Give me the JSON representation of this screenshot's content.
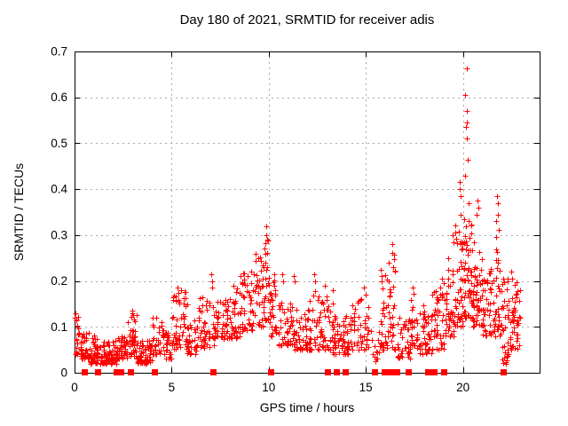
{
  "chart_data": {
    "type": "scatter",
    "title": "Day 180 of 2021, SRMTID for receiver adis",
    "xlabel": "GPS time / hours",
    "ylabel": "SRMTID / TECUs",
    "xlim": [
      0,
      23.95
    ],
    "ylim": [
      0,
      0.7
    ],
    "xticks": [
      "0",
      "5",
      "10",
      "15",
      "20"
    ],
    "yticks": [
      "0",
      "0.1",
      "0.2",
      "0.3",
      "0.4",
      "0.5",
      "0.6",
      "0.7"
    ],
    "grid": true,
    "legend": false,
    "marker": "plus",
    "marker_color": "#ff0000",
    "frame_color": "#000000",
    "grid_color": "#a9a9a9",
    "series_name": "SRMTID",
    "seed": 12,
    "spread_exponent": 1.55,
    "highlight_points": [
      [
        0.05,
        0.13
      ],
      [
        0.08,
        0.115
      ],
      [
        2.95,
        0.135
      ],
      [
        3.0,
        0.125
      ],
      [
        4.2,
        0.12
      ],
      [
        5.3,
        0.185
      ],
      [
        5.35,
        0.175
      ],
      [
        7.05,
        0.215
      ],
      [
        7.08,
        0.2
      ],
      [
        7.1,
        0.185
      ],
      [
        8.2,
        0.19
      ],
      [
        8.9,
        0.21
      ],
      [
        9.1,
        0.22
      ],
      [
        9.8,
        0.27
      ],
      [
        9.83,
        0.282
      ],
      [
        9.85,
        0.32
      ],
      [
        9.88,
        0.3
      ],
      [
        9.9,
        0.29
      ],
      [
        10.7,
        0.215
      ],
      [
        10.75,
        0.2
      ],
      [
        11.3,
        0.21
      ],
      [
        11.35,
        0.2
      ],
      [
        12.35,
        0.215
      ],
      [
        12.4,
        0.2
      ],
      [
        12.9,
        0.19
      ],
      [
        13.3,
        0.18
      ],
      [
        14.9,
        0.185
      ],
      [
        15.0,
        0.17
      ],
      [
        15.78,
        0.225
      ],
      [
        15.82,
        0.21
      ],
      [
        16.2,
        0.24
      ],
      [
        16.35,
        0.28
      ],
      [
        16.38,
        0.262
      ],
      [
        16.45,
        0.247
      ],
      [
        17.4,
        0.185
      ],
      [
        18.9,
        0.205
      ],
      [
        19.0,
        0.195
      ],
      [
        19.45,
        0.3
      ],
      [
        19.5,
        0.285
      ],
      [
        19.82,
        0.415
      ],
      [
        19.85,
        0.4
      ],
      [
        19.87,
        0.385
      ],
      [
        19.9,
        0.345
      ],
      [
        20.05,
        0.335
      ],
      [
        20.1,
        0.43
      ],
      [
        20.13,
        0.605
      ],
      [
        20.17,
        0.535
      ],
      [
        20.19,
        0.663
      ],
      [
        20.2,
        0.545
      ],
      [
        20.21,
        0.51
      ],
      [
        20.22,
        0.57
      ],
      [
        20.24,
        0.465
      ],
      [
        20.28,
        0.37
      ],
      [
        20.3,
        0.33
      ],
      [
        20.72,
        0.345
      ],
      [
        20.75,
        0.375
      ],
      [
        20.78,
        0.36
      ],
      [
        21.7,
        0.295
      ],
      [
        21.72,
        0.33
      ],
      [
        21.75,
        0.385
      ],
      [
        21.78,
        0.345
      ],
      [
        21.8,
        0.37
      ],
      [
        21.85,
        0.312
      ],
      [
        22.2,
        0.02
      ],
      [
        22.25,
        0.035
      ],
      [
        22.3,
        0.05
      ],
      [
        22.5,
        0.22
      ],
      [
        22.55,
        0.205
      ]
    ],
    "density_bins": [
      [
        0.0,
        0.3,
        0.04,
        0.13,
        18
      ],
      [
        0.3,
        0.8,
        0.03,
        0.09,
        40
      ],
      [
        0.8,
        1.3,
        0.02,
        0.085,
        45
      ],
      [
        1.3,
        2.2,
        0.02,
        0.07,
        75
      ],
      [
        2.2,
        2.7,
        0.03,
        0.08,
        40
      ],
      [
        2.7,
        3.2,
        0.035,
        0.13,
        45
      ],
      [
        3.2,
        4.0,
        0.02,
        0.075,
        60
      ],
      [
        4.0,
        4.6,
        0.04,
        0.12,
        35
      ],
      [
        4.6,
        5.0,
        0.03,
        0.09,
        25
      ],
      [
        5.0,
        5.8,
        0.05,
        0.185,
        55
      ],
      [
        5.8,
        6.3,
        0.04,
        0.115,
        30
      ],
      [
        6.3,
        7.2,
        0.055,
        0.165,
        50
      ],
      [
        7.2,
        7.8,
        0.07,
        0.16,
        35
      ],
      [
        7.8,
        8.5,
        0.075,
        0.185,
        45
      ],
      [
        8.5,
        9.3,
        0.09,
        0.22,
        50
      ],
      [
        9.3,
        9.7,
        0.1,
        0.26,
        30
      ],
      [
        9.7,
        10.1,
        0.11,
        0.29,
        30
      ],
      [
        10.1,
        10.5,
        0.08,
        0.23,
        25
      ],
      [
        10.5,
        11.3,
        0.06,
        0.16,
        50
      ],
      [
        11.3,
        12.0,
        0.05,
        0.14,
        45
      ],
      [
        12.0,
        12.6,
        0.05,
        0.18,
        35
      ],
      [
        12.6,
        13.3,
        0.05,
        0.17,
        40
      ],
      [
        13.3,
        14.2,
        0.04,
        0.13,
        55
      ],
      [
        14.2,
        15.2,
        0.05,
        0.18,
        50
      ],
      [
        15.2,
        15.6,
        0.02,
        0.1,
        10
      ],
      [
        15.6,
        16.0,
        0.04,
        0.22,
        25
      ],
      [
        16.0,
        16.6,
        0.05,
        0.26,
        35
      ],
      [
        16.6,
        17.3,
        0.03,
        0.12,
        40
      ],
      [
        17.3,
        17.6,
        0.06,
        0.18,
        20
      ],
      [
        17.6,
        18.4,
        0.04,
        0.15,
        50
      ],
      [
        18.4,
        19.1,
        0.05,
        0.2,
        45
      ],
      [
        19.1,
        19.6,
        0.08,
        0.28,
        40
      ],
      [
        19.6,
        20.0,
        0.1,
        0.33,
        45
      ],
      [
        20.0,
        20.5,
        0.12,
        0.33,
        55
      ],
      [
        20.5,
        21.0,
        0.1,
        0.29,
        50
      ],
      [
        21.0,
        21.5,
        0.08,
        0.24,
        40
      ],
      [
        21.5,
        22.0,
        0.08,
        0.28,
        40
      ],
      [
        22.0,
        22.4,
        0.02,
        0.21,
        30
      ],
      [
        22.4,
        22.95,
        0.05,
        0.2,
        45
      ]
    ],
    "zero_marker_x": [
      0.51,
      1.19,
      2.15,
      2.38,
      2.86,
      4.11,
      7.12,
      10.12,
      13.04,
      13.49,
      13.95,
      15.47,
      15.93,
      16.06,
      16.19,
      16.32,
      16.45,
      16.57,
      17.17,
      18.2,
      18.5,
      19.02,
      22.08
    ]
  }
}
